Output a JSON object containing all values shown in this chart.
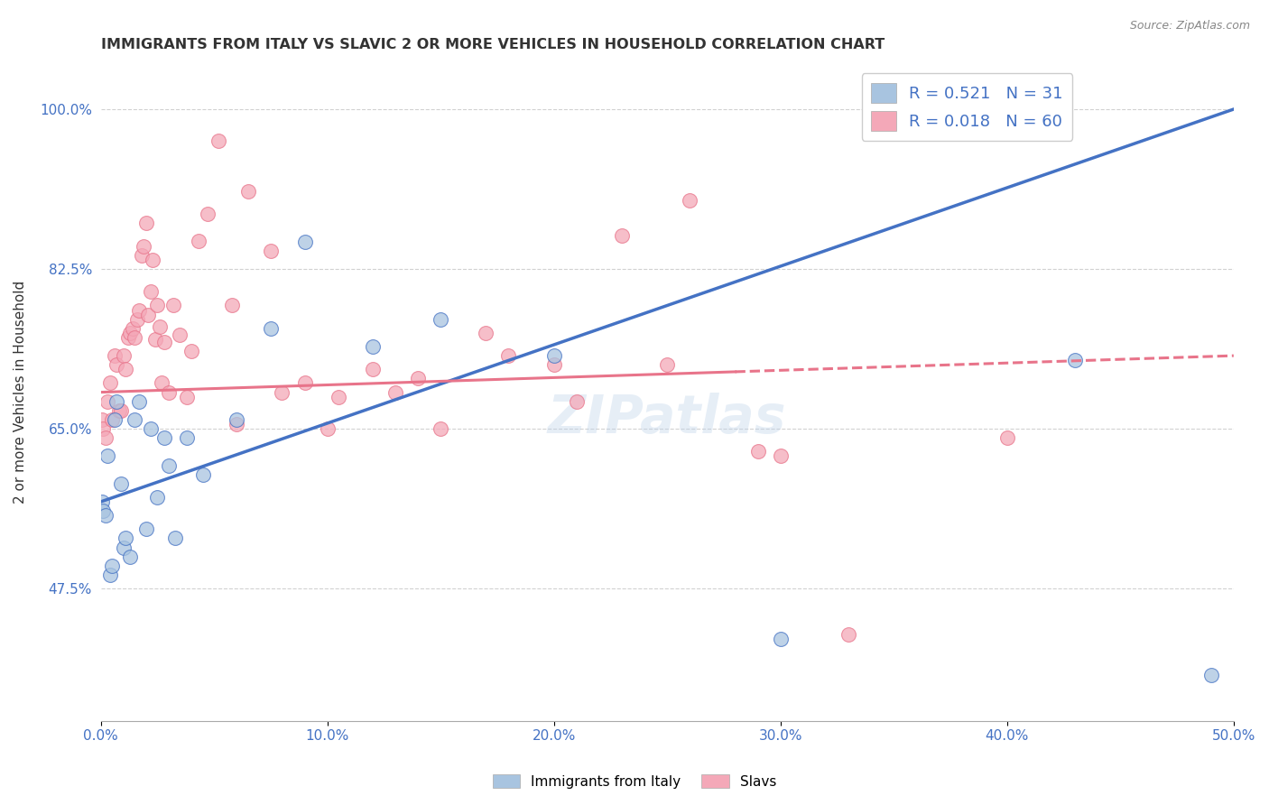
{
  "title": "IMMIGRANTS FROM ITALY VS SLAVIC 2 OR MORE VEHICLES IN HOUSEHOLD CORRELATION CHART",
  "source": "Source: ZipAtlas.com",
  "ylabel_label": "2 or more Vehicles in Household",
  "legend_label1": "Immigrants from Italy",
  "legend_label2": "Slavs",
  "R1": 0.521,
  "N1": 31,
  "R2": 0.018,
  "N2": 60,
  "color_italy": "#a8c4e0",
  "color_slavic": "#f4a8b8",
  "color_italy_line": "#4472c4",
  "color_slavic_line": "#e8748a",
  "background": "#ffffff",
  "grid_color": "#cccccc",
  "title_color": "#333333",
  "axis_label_color": "#4472c4",
  "italy_x": [
    0.0005,
    0.001,
    0.002,
    0.003,
    0.004,
    0.005,
    0.006,
    0.007,
    0.009,
    0.01,
    0.011,
    0.013,
    0.015,
    0.017,
    0.02,
    0.022,
    0.025,
    0.028,
    0.03,
    0.033,
    0.038,
    0.045,
    0.06,
    0.075,
    0.09,
    0.12,
    0.15,
    0.2,
    0.3,
    0.43,
    0.49
  ],
  "italy_y": [
    0.57,
    0.56,
    0.555,
    0.62,
    0.49,
    0.5,
    0.66,
    0.68,
    0.59,
    0.52,
    0.53,
    0.51,
    0.66,
    0.68,
    0.54,
    0.65,
    0.575,
    0.64,
    0.61,
    0.53,
    0.64,
    0.6,
    0.66,
    0.76,
    0.855,
    0.74,
    0.77,
    0.73,
    0.42,
    0.725,
    0.38
  ],
  "italy_line_x": [
    0.0,
    0.5
  ],
  "italy_line_y": [
    0.57,
    1.0
  ],
  "slavic_x": [
    0.0005,
    0.001,
    0.002,
    0.003,
    0.004,
    0.005,
    0.006,
    0.007,
    0.008,
    0.009,
    0.01,
    0.011,
    0.012,
    0.013,
    0.014,
    0.015,
    0.016,
    0.017,
    0.018,
    0.019,
    0.02,
    0.021,
    0.022,
    0.023,
    0.024,
    0.025,
    0.026,
    0.027,
    0.028,
    0.03,
    0.032,
    0.035,
    0.038,
    0.04,
    0.043,
    0.047,
    0.052,
    0.058,
    0.065,
    0.075,
    0.09,
    0.105,
    0.12,
    0.14,
    0.17,
    0.2,
    0.23,
    0.26,
    0.06,
    0.08,
    0.1,
    0.13,
    0.15,
    0.18,
    0.21,
    0.25,
    0.29,
    0.33,
    0.4,
    0.3
  ],
  "slavic_y": [
    0.66,
    0.65,
    0.64,
    0.68,
    0.7,
    0.66,
    0.73,
    0.72,
    0.67,
    0.67,
    0.73,
    0.715,
    0.75,
    0.755,
    0.76,
    0.75,
    0.77,
    0.78,
    0.84,
    0.85,
    0.875,
    0.775,
    0.8,
    0.835,
    0.748,
    0.785,
    0.762,
    0.7,
    0.745,
    0.69,
    0.785,
    0.753,
    0.685,
    0.735,
    0.856,
    0.885,
    0.965,
    0.785,
    0.91,
    0.845,
    0.7,
    0.685,
    0.715,
    0.705,
    0.755,
    0.72,
    0.862,
    0.9,
    0.655,
    0.69,
    0.65,
    0.69,
    0.65,
    0.73,
    0.68,
    0.72,
    0.625,
    0.425,
    0.64,
    0.62
  ],
  "slavic_line_x": [
    0.0,
    0.5
  ],
  "slavic_line_y": [
    0.69,
    0.73
  ],
  "xlim": [
    0.0,
    0.5
  ],
  "ylim": [
    0.33,
    1.05
  ],
  "xtick_vals": [
    0.0,
    0.1,
    0.2,
    0.3,
    0.4,
    0.5
  ],
  "xtick_labels": [
    "0.0%",
    "10.0%",
    "20.0%",
    "30.0%",
    "40.0%",
    "50.0%"
  ],
  "ytick_vals": [
    0.475,
    0.65,
    0.825,
    1.0
  ],
  "ytick_labels": [
    "47.5%",
    "65.0%",
    "82.5%",
    "100.0%"
  ]
}
